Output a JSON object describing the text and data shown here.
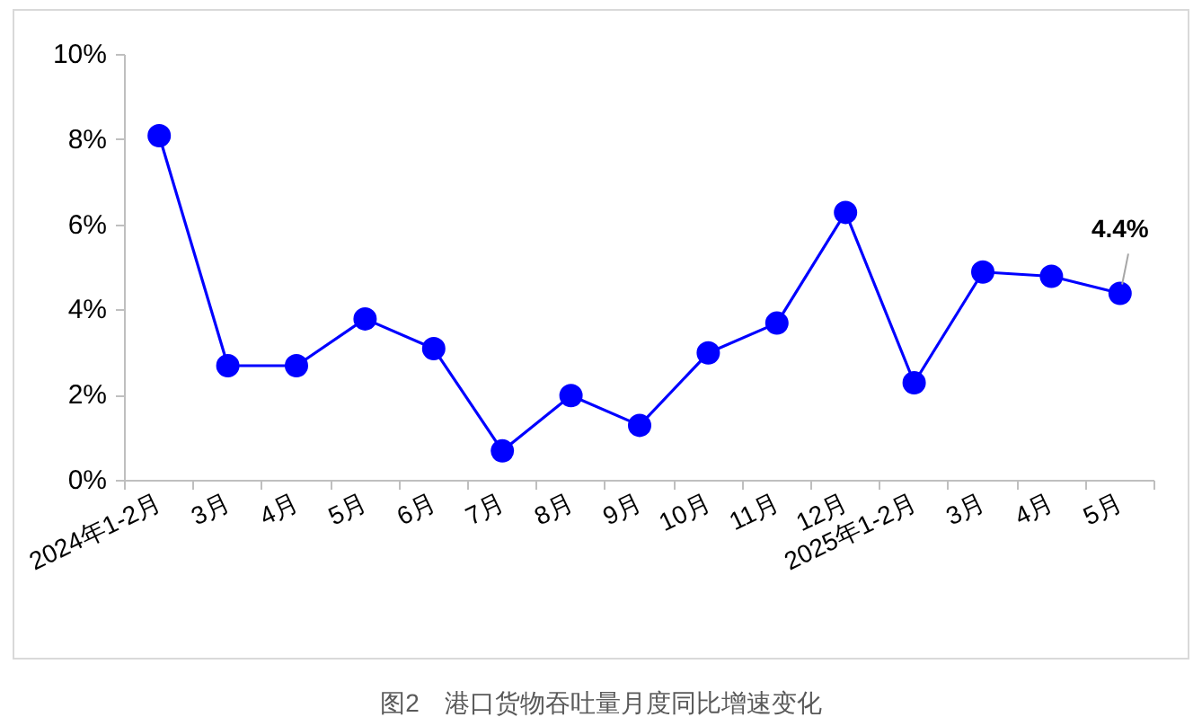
{
  "chart_data": {
    "type": "line",
    "title": "图2　港口货物吞吐量月度同比增速变化",
    "categories": [
      "2024年1-2月",
      "3月",
      "4月",
      "5月",
      "6月",
      "7月",
      "8月",
      "9月",
      "10月",
      "11月",
      "12月",
      "2025年1-2月",
      "3月",
      "4月",
      "5月"
    ],
    "series": [
      {
        "color": "#0000ff",
        "values": [
          8.1,
          2.7,
          2.7,
          3.8,
          3.1,
          0.7,
          2.0,
          1.3,
          3.0,
          3.7,
          6.3,
          2.3,
          4.9,
          4.8,
          4.4
        ],
        "value_labels": [
          null,
          null,
          null,
          null,
          null,
          null,
          null,
          null,
          null,
          null,
          null,
          null,
          null,
          null,
          "4.4%"
        ]
      }
    ],
    "ylim": [
      0,
      10
    ],
    "yticks": [
      {
        "value": 0,
        "label": "0%"
      },
      {
        "value": 2,
        "label": "2%"
      },
      {
        "value": 4,
        "label": "4%"
      },
      {
        "value": 6,
        "label": "6%"
      },
      {
        "value": 8,
        "label": "8%"
      },
      {
        "value": 10,
        "label": "10%"
      }
    ],
    "grid": false,
    "marker": "circle",
    "line_style": "solid"
  }
}
